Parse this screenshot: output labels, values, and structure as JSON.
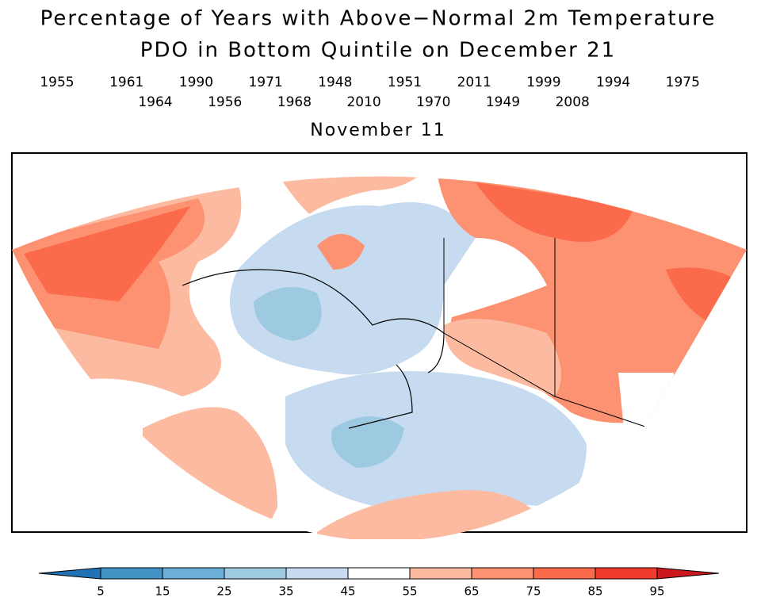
{
  "header": {
    "title": "Percentage of Years with Above−Normal 2m Temperature",
    "subtitle": "PDO in Bottom Quintile on December 21",
    "years": [
      [
        "1955",
        "1961",
        "1990",
        "1971",
        "1948",
        "1951",
        "2011",
        "1999",
        "1994",
        "1975"
      ],
      [
        "1964",
        "1956",
        "1968",
        "2010",
        "1970",
        "1949",
        "2008"
      ]
    ],
    "date": "November 11"
  },
  "colorbar": {
    "ticks": [
      5,
      15,
      25,
      35,
      45,
      55,
      65,
      75,
      85,
      95
    ],
    "colors": [
      "#2171b5",
      "#4292c6",
      "#6baed6",
      "#9ecae1",
      "#c6dbef",
      "#ffffff",
      "#fcbba1",
      "#fc9272",
      "#fb6a4a",
      "#ef3b2c",
      "#cb181d"
    ]
  }
}
